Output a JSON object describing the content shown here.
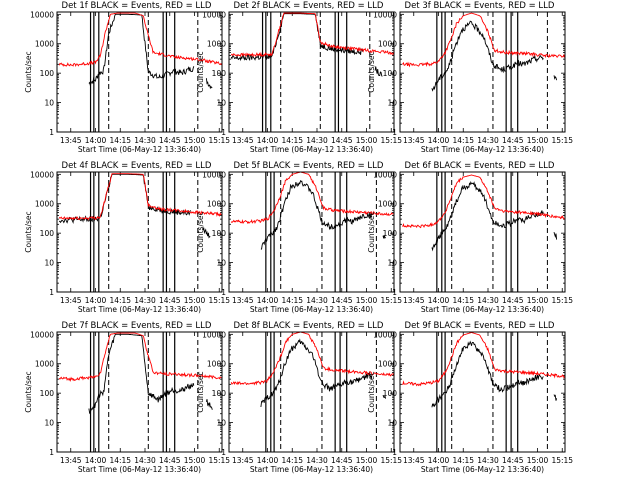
{
  "figure": {
    "colors": {
      "events": "#000000",
      "lld": "#ff0000",
      "axes": "#000000",
      "background": "#ffffff"
    },
    "xlabel": "Start Time (06-May-12 13:36:40)",
    "ylabel": "Counts/sec",
    "yscale": "log",
    "ylim": [
      1,
      12000
    ],
    "ytick_labels": [
      "1",
      "10",
      "100",
      "1000",
      "10000"
    ],
    "xlim_minutes_after_13_36_40": [
      0,
      100
    ],
    "xtick_labels": [
      "13:45",
      "14:00",
      "14:15",
      "14:30",
      "14:45",
      "15:00",
      "15:15"
    ]
  },
  "chart_data": [
    {
      "type": "line",
      "title": "Det 1f BLACK = Events, RED = LLD",
      "events_present_from": "13:56",
      "events_gap": [
        "15:00",
        "15:07"
      ],
      "solid_vlines": [
        "13:57",
        "13:59",
        "14:02",
        "14:41",
        "14:43",
        "14:48"
      ],
      "dashed_vlines": [
        "14:08",
        "14:32",
        "15:02"
      ],
      "series": [
        {
          "name": "Events",
          "color": "#000000",
          "x": [
            "13:56",
            "14:00",
            "14:02",
            "14:05",
            "14:08",
            "14:12",
            "14:20",
            "14:28",
            "14:32",
            "14:38",
            "14:43",
            "14:47",
            "14:52",
            "14:56",
            "15:00",
            "15:07",
            "15:09",
            "15:11"
          ],
          "y": [
            45,
            60,
            100,
            120,
            2200,
            10000,
            10000,
            9500,
            110,
            70,
            90,
            120,
            100,
            130,
            150,
            60,
            40,
            35
          ]
        },
        {
          "name": "LLD",
          "color": "#ff0000",
          "x": [
            "13:38",
            "13:46",
            "13:54",
            "14:00",
            "14:03",
            "14:06",
            "14:09",
            "14:13",
            "14:24",
            "14:29",
            "14:31",
            "14:35",
            "14:42",
            "14:48",
            "14:54",
            "15:00",
            "15:06",
            "15:12",
            "15:17"
          ],
          "y": [
            200,
            190,
            210,
            230,
            400,
            2500,
            10000,
            11000,
            11000,
            9000,
            3000,
            500,
            420,
            350,
            330,
            300,
            270,
            230,
            200
          ]
        }
      ]
    },
    {
      "type": "line",
      "title": "Det 2f BLACK = Events, RED = LLD",
      "events_present_from": "13:38",
      "events_gap": [
        "14:58",
        "15:05"
      ],
      "solid_vlines": [
        "13:57",
        "13:59",
        "14:02",
        "14:41",
        "14:43",
        "14:48"
      ],
      "dashed_vlines": [
        "14:08",
        "14:32",
        "15:02"
      ],
      "series": [
        {
          "name": "Events",
          "color": "#000000",
          "x": [
            "13:38",
            "13:50",
            "14:00",
            "14:03",
            "14:07",
            "14:10",
            "14:20",
            "14:29",
            "14:32",
            "14:40",
            "14:50",
            "14:58",
            "15:05",
            "15:08",
            "15:10"
          ],
          "y": [
            320,
            340,
            360,
            400,
            2500,
            10500,
            10500,
            10000,
            900,
            650,
            560,
            520,
            150,
            90,
            80
          ]
        },
        {
          "name": "LLD",
          "color": "#ff0000",
          "x": [
            "13:38",
            "13:50",
            "14:00",
            "14:03",
            "14:07",
            "14:10",
            "14:20",
            "14:29",
            "14:32",
            "14:40",
            "14:50",
            "15:00",
            "15:10",
            "15:17"
          ],
          "y": [
            420,
            420,
            430,
            460,
            3000,
            11000,
            11000,
            10500,
            1100,
            800,
            700,
            600,
            520,
            480
          ]
        }
      ]
    },
    {
      "type": "line",
      "title": "Det 3f BLACK = Events, RED = LLD",
      "events_present_from": "13:56",
      "events_gap": [
        "15:04",
        "15:10"
      ],
      "solid_vlines": [
        "13:59",
        "14:02",
        "14:04",
        "14:41",
        "14:44",
        "14:48"
      ],
      "dashed_vlines": [
        "14:08",
        "14:33",
        "15:06"
      ],
      "series": [
        {
          "name": "Events",
          "color": "#000000",
          "x": [
            "13:56",
            "14:00",
            "14:03",
            "14:06",
            "14:10",
            "14:14",
            "14:20",
            "14:27",
            "14:33",
            "14:38",
            "14:44",
            "14:48",
            "14:52",
            "14:58",
            "15:04",
            "15:10",
            "15:12"
          ],
          "y": [
            25,
            60,
            90,
            150,
            800,
            3000,
            5000,
            2000,
            200,
            130,
            160,
            220,
            200,
            300,
            350,
            80,
            60
          ]
        },
        {
          "name": "LLD",
          "color": "#ff0000",
          "x": [
            "13:38",
            "13:48",
            "13:56",
            "14:00",
            "14:04",
            "14:08",
            "14:11",
            "14:15",
            "14:20",
            "14:25",
            "14:30",
            "14:34",
            "14:40",
            "14:48",
            "14:56",
            "15:04",
            "15:10",
            "15:17"
          ],
          "y": [
            200,
            190,
            210,
            250,
            500,
            1600,
            5000,
            9000,
            11000,
            9000,
            2500,
            600,
            500,
            480,
            450,
            400,
            380,
            380
          ]
        }
      ]
    },
    {
      "type": "line",
      "title": "Det 4f BLACK = Events, RED = LLD",
      "events_present_from": "13:38",
      "events_gap": [
        "14:58",
        "15:05"
      ],
      "solid_vlines": [
        "13:57",
        "13:59",
        "14:02",
        "14:41",
        "14:43",
        "14:48"
      ],
      "dashed_vlines": [
        "14:08",
        "14:32",
        "15:02"
      ],
      "series": [
        {
          "name": "Events",
          "color": "#000000",
          "x": [
            "13:38",
            "13:50",
            "14:00",
            "14:03",
            "14:07",
            "14:10",
            "14:20",
            "14:29",
            "14:32",
            "14:40",
            "14:50",
            "14:58",
            "15:05",
            "15:08",
            "15:10"
          ],
          "y": [
            280,
            290,
            300,
            340,
            2200,
            10000,
            10000,
            9500,
            800,
            600,
            520,
            480,
            150,
            90,
            80
          ]
        },
        {
          "name": "LLD",
          "color": "#ff0000",
          "x": [
            "13:38",
            "13:50",
            "14:00",
            "14:03",
            "14:07",
            "14:10",
            "14:20",
            "14:29",
            "14:32",
            "14:40",
            "14:50",
            "15:00",
            "15:10",
            "15:17"
          ],
          "y": [
            320,
            320,
            330,
            360,
            2500,
            10500,
            10500,
            10000,
            900,
            650,
            580,
            520,
            460,
            420
          ]
        }
      ]
    },
    {
      "type": "line",
      "title": "Det 5f BLACK = Events, RED = LLD",
      "events_present_from": "13:56",
      "events_gap": [
        "15:04",
        "15:10"
      ],
      "solid_vlines": [
        "13:59",
        "14:02",
        "14:04",
        "14:41",
        "14:44",
        "14:48"
      ],
      "dashed_vlines": [
        "14:08",
        "14:33",
        "15:06"
      ],
      "series": [
        {
          "name": "Events",
          "color": "#000000",
          "x": [
            "13:56",
            "14:00",
            "14:03",
            "14:06",
            "14:10",
            "14:14",
            "14:20",
            "14:27",
            "14:33",
            "14:38",
            "14:44",
            "14:48",
            "14:52",
            "14:58",
            "15:04",
            "15:10",
            "15:12"
          ],
          "y": [
            30,
            70,
            100,
            170,
            900,
            3500,
            6000,
            2500,
            250,
            160,
            200,
            280,
            250,
            380,
            420,
            90,
            60
          ]
        },
        {
          "name": "LLD",
          "color": "#ff0000",
          "x": [
            "13:38",
            "13:48",
            "13:56",
            "14:00",
            "14:04",
            "14:08",
            "14:11",
            "14:15",
            "14:20",
            "14:25",
            "14:30",
            "14:34",
            "14:40",
            "14:48",
            "14:56",
            "15:04",
            "15:10",
            "15:17"
          ],
          "y": [
            250,
            240,
            260,
            300,
            600,
            2000,
            6000,
            10000,
            12000,
            10000,
            3000,
            700,
            600,
            550,
            520,
            480,
            450,
            440
          ]
        }
      ]
    },
    {
      "type": "line",
      "title": "Det 6f BLACK = Events, RED = LLD",
      "events_present_from": "13:56",
      "events_gap": [
        "15:04",
        "15:10"
      ],
      "solid_vlines": [
        "13:59",
        "14:02",
        "14:04",
        "14:41",
        "14:44",
        "14:48"
      ],
      "dashed_vlines": [
        "14:08",
        "14:33",
        "15:06"
      ],
      "series": [
        {
          "name": "Events",
          "color": "#000000",
          "x": [
            "13:56",
            "14:00",
            "14:03",
            "14:06",
            "14:10",
            "14:14",
            "14:20",
            "14:27",
            "14:33",
            "14:38",
            "14:44",
            "14:48",
            "14:52",
            "14:58",
            "15:04",
            "15:10",
            "15:12"
          ],
          "y": [
            30,
            70,
            110,
            200,
            900,
            3000,
            5000,
            2200,
            250,
            180,
            220,
            300,
            280,
            420,
            480,
            100,
            70
          ]
        },
        {
          "name": "LLD",
          "color": "#ff0000",
          "x": [
            "13:38",
            "13:48",
            "13:56",
            "14:00",
            "14:04",
            "14:08",
            "14:11",
            "14:15",
            "14:20",
            "14:25",
            "14:30",
            "14:34",
            "14:40",
            "14:48",
            "14:56",
            "15:04",
            "15:10",
            "15:17"
          ],
          "y": [
            180,
            170,
            190,
            260,
            500,
            1800,
            5000,
            8000,
            9500,
            8000,
            2500,
            700,
            550,
            520,
            480,
            420,
            360,
            330
          ]
        }
      ]
    },
    {
      "type": "line",
      "title": "Det 7f BLACK = Events, RED = LLD",
      "events_present_from": "13:56",
      "events_gap": [
        "15:00",
        "15:07"
      ],
      "solid_vlines": [
        "13:57",
        "13:59",
        "14:02",
        "14:41",
        "14:43",
        "14:48"
      ],
      "dashed_vlines": [
        "14:08",
        "14:32",
        "15:02"
      ],
      "series": [
        {
          "name": "Events",
          "color": "#000000",
          "x": [
            "13:56",
            "14:00",
            "14:02",
            "14:05",
            "14:08",
            "14:12",
            "14:20",
            "14:28",
            "14:32",
            "14:38",
            "14:43",
            "14:47",
            "14:52",
            "14:56",
            "15:00",
            "15:07",
            "15:09",
            "15:11"
          ],
          "y": [
            25,
            40,
            80,
            120,
            2000,
            10000,
            10000,
            9000,
            100,
            60,
            100,
            130,
            120,
            170,
            200,
            60,
            40,
            30
          ]
        },
        {
          "name": "LLD",
          "color": "#ff0000",
          "x": [
            "13:38",
            "13:46",
            "13:54",
            "14:00",
            "14:03",
            "14:06",
            "14:09",
            "14:13",
            "14:24",
            "14:29",
            "14:31",
            "14:35",
            "14:42",
            "14:48",
            "14:54",
            "15:00",
            "15:06",
            "15:12",
            "15:17"
          ],
          "y": [
            320,
            300,
            330,
            360,
            500,
            2500,
            10000,
            11000,
            11000,
            9000,
            3000,
            500,
            450,
            450,
            420,
            400,
            380,
            350,
            330
          ]
        }
      ]
    },
    {
      "type": "line",
      "title": "Det 8f BLACK = Events, RED = LLD",
      "events_present_from": "13:56",
      "events_gap": [
        "15:04",
        "15:10"
      ],
      "solid_vlines": [
        "13:59",
        "14:02",
        "14:04",
        "14:41",
        "14:44",
        "14:48"
      ],
      "dashed_vlines": [
        "14:08",
        "14:33",
        "15:06"
      ],
      "series": [
        {
          "name": "Events",
          "color": "#000000",
          "x": [
            "13:56",
            "14:00",
            "14:03",
            "14:06",
            "14:10",
            "14:14",
            "14:20",
            "14:27",
            "14:33",
            "14:38",
            "14:44",
            "14:48",
            "14:52",
            "14:58",
            "15:04",
            "15:10",
            "15:12"
          ],
          "y": [
            40,
            70,
            100,
            160,
            800,
            3000,
            5500,
            2200,
            220,
            140,
            180,
            250,
            230,
            350,
            400,
            90,
            60
          ]
        },
        {
          "name": "LLD",
          "color": "#ff0000",
          "x": [
            "13:38",
            "13:48",
            "13:56",
            "14:00",
            "14:04",
            "14:08",
            "14:11",
            "14:15",
            "14:20",
            "14:25",
            "14:30",
            "14:34",
            "14:40",
            "14:48",
            "14:56",
            "15:04",
            "15:10",
            "15:17"
          ],
          "y": [
            220,
            210,
            230,
            270,
            550,
            1800,
            5500,
            10000,
            12000,
            10000,
            3000,
            700,
            600,
            560,
            520,
            470,
            430,
            420
          ]
        }
      ]
    },
    {
      "type": "line",
      "title": "Det 9f BLACK = Events, RED = LLD",
      "events_present_from": "13:56",
      "events_gap": [
        "15:04",
        "15:10"
      ],
      "solid_vlines": [
        "13:59",
        "14:02",
        "14:04",
        "14:41",
        "14:44",
        "14:48"
      ],
      "dashed_vlines": [
        "14:08",
        "14:33",
        "15:06"
      ],
      "series": [
        {
          "name": "Events",
          "color": "#000000",
          "x": [
            "13:56",
            "14:00",
            "14:03",
            "14:06",
            "14:10",
            "14:14",
            "14:20",
            "14:27",
            "14:33",
            "14:38",
            "14:44",
            "14:48",
            "14:52",
            "14:58",
            "15:04",
            "15:10",
            "15:12"
          ],
          "y": [
            35,
            60,
            90,
            150,
            700,
            2800,
            5000,
            2000,
            200,
            130,
            170,
            240,
            220,
            330,
            380,
            80,
            55
          ]
        },
        {
          "name": "LLD",
          "color": "#ff0000",
          "x": [
            "13:38",
            "13:48",
            "13:56",
            "14:00",
            "14:04",
            "14:08",
            "14:11",
            "14:15",
            "14:20",
            "14:25",
            "14:30",
            "14:34",
            "14:40",
            "14:48",
            "14:56",
            "15:04",
            "15:10",
            "15:17"
          ],
          "y": [
            220,
            200,
            230,
            260,
            500,
            1700,
            5000,
            9500,
            11500,
            9500,
            3000,
            650,
            560,
            520,
            490,
            440,
            400,
            380
          ]
        }
      ]
    }
  ]
}
